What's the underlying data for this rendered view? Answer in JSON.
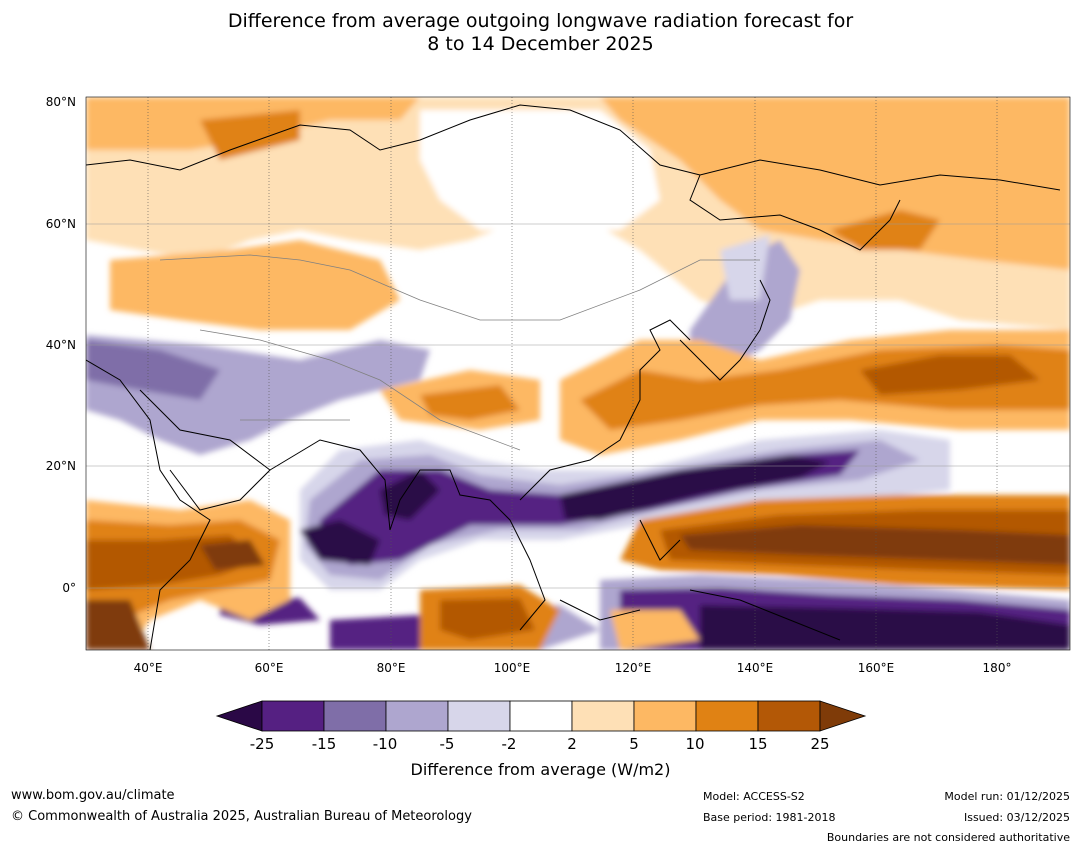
{
  "title": {
    "line1": "Difference from average outgoing longwave radiation forecast for",
    "line2": "8 to 14 December 2025"
  },
  "map": {
    "lat_labels": [
      "80°N",
      "60°N",
      "40°N",
      "20°N",
      "0°"
    ],
    "lon_labels": [
      "40°E",
      "60°E",
      "80°E",
      "100°E",
      "120°E",
      "140°E",
      "160°E",
      "180°"
    ],
    "lat_range": [
      -10,
      80
    ],
    "lon_range": [
      30,
      190
    ]
  },
  "colorbar": {
    "title": "Difference from average (W/m2)",
    "ticks": [
      "-25",
      "-15",
      "-10",
      "-5",
      "-2",
      "2",
      "5",
      "10",
      "15",
      "25"
    ],
    "colors": {
      "under": "#2a0846",
      "bins": [
        "#552082",
        "#7f6ea8",
        "#aea6cf",
        "#d7d6ea",
        "#ffffff",
        "#fee0b6",
        "#fdb863",
        "#e08214",
        "#b35806"
      ],
      "over": "#7f3b08"
    }
  },
  "footer": {
    "website": "www.bom.gov.au/climate",
    "copyright": "© Commonwealth of Australia 2025, Australian Bureau of Meteorology",
    "model": "Model: ACCESS-S2",
    "base_period": "Base period: 1981-2018",
    "model_run": "Model run: 01/12/2025",
    "issued": "Issued: 03/12/2025",
    "disclaimer": "Boundaries are not considered authoritative"
  }
}
